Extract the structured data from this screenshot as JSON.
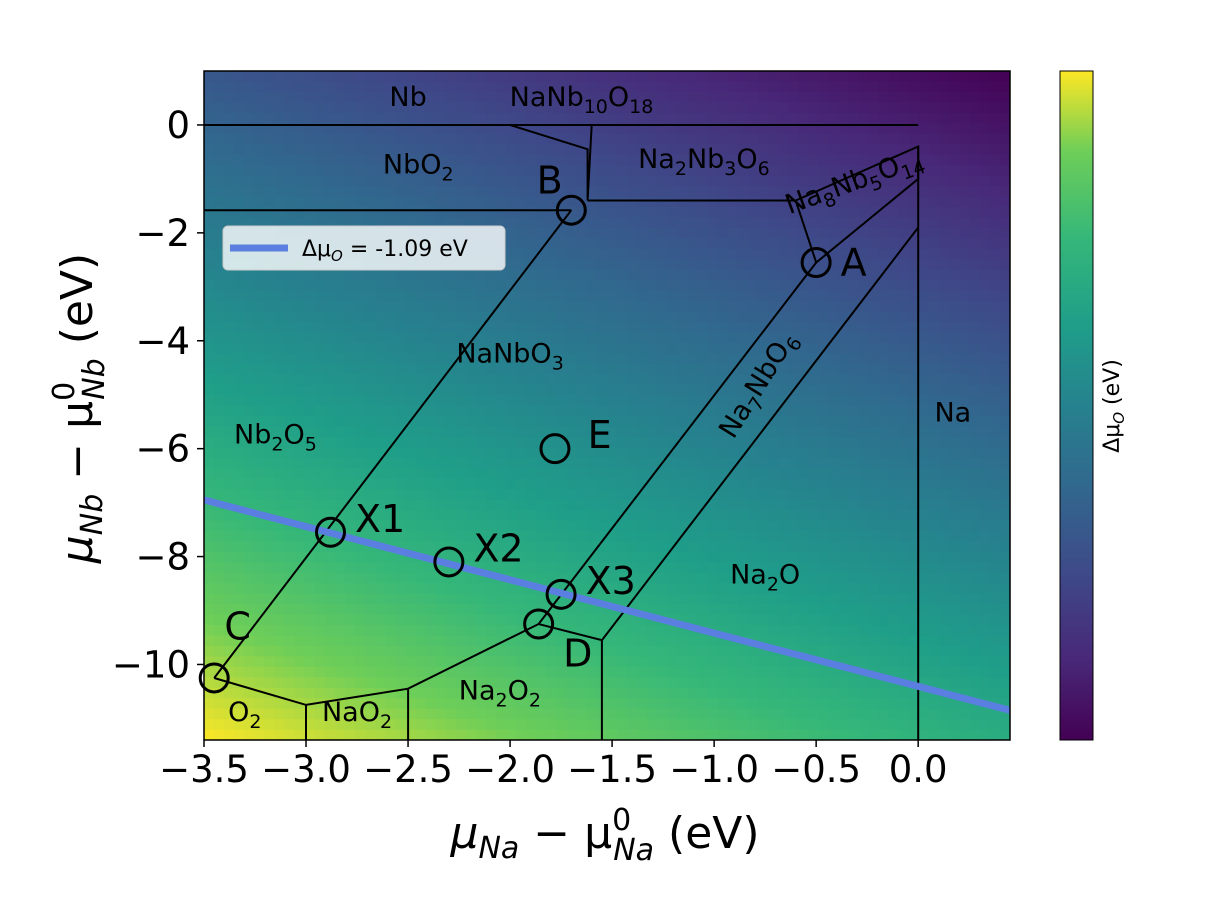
{
  "chart_data": {
    "type": "heatmap",
    "xlim": [
      -3.5,
      0.45
    ],
    "ylim": [
      -11.4,
      1.0
    ],
    "x_ticks": [
      -3.5,
      -3.0,
      -2.5,
      -2.0,
      -1.5,
      -1.0,
      -0.5,
      0.0
    ],
    "x_tick_labels": [
      "−3.5",
      "−3.0",
      "−2.5",
      "−2.0",
      "−1.5",
      "−1.0",
      "−0.5",
      "0.0"
    ],
    "y_ticks": [
      0,
      -2,
      -4,
      -6,
      -8,
      -10
    ],
    "y_tick_labels": [
      "0",
      "−2",
      "−4",
      "−6",
      "−8",
      "−10"
    ],
    "xlabel": {
      "main": "μ",
      "sub": "Na",
      "minus": " − μ",
      "sup": "0",
      "sub2": "Na",
      "unit": " (eV)"
    },
    "ylabel": {
      "main": "μ",
      "sub": "Nb",
      "minus": " − μ",
      "sup": "0",
      "sub2": "Nb",
      "unit": " (eV)"
    },
    "colorbar": {
      "label_main": "Δμ",
      "label_sub": "O",
      "label_unit": " (eV)",
      "colormap": "viridis",
      "reversed": true
    },
    "background": {
      "formula": "delta_mu_O = (-2*mu_Na - 2*mu_Nb)/5 roughly; reversed viridis"
    },
    "legend": {
      "placement": "upper-left",
      "line_color": "#5b7fe0",
      "text_main": "Δμ",
      "text_sub": "O",
      "text_rest": " = -1.09 eV"
    },
    "line_dmu_o": {
      "value": -1.09,
      "x": [
        -3.5,
        0.45
      ],
      "y": [
        -6.95,
        -10.85
      ],
      "color": "#5b7fe0"
    },
    "phase_boundaries": [
      [
        [
          -3.5,
          0.0
        ],
        [
          0.0,
          0.0
        ]
      ],
      [
        [
          -2.0,
          0.0
        ],
        [
          -1.62,
          -0.45
        ],
        [
          -1.62,
          -1.4
        ],
        [
          -1.6,
          0.0
        ]
      ],
      [
        [
          -3.5,
          -1.58
        ],
        [
          -1.7,
          -1.58
        ]
      ],
      [
        [
          -1.62,
          -1.4
        ],
        [
          -0.6,
          -1.4
        ],
        [
          -0.5,
          -2.55
        ],
        [
          0.0,
          -1.0
        ],
        [
          0.0,
          -0.4
        ],
        [
          -0.6,
          -1.4
        ]
      ],
      [
        [
          -1.7,
          -1.58
        ],
        [
          -3.45,
          -10.25
        ]
      ],
      [
        [
          -0.5,
          -2.55
        ],
        [
          -1.86,
          -9.25
        ]
      ],
      [
        [
          0.0,
          -1.9
        ],
        [
          -1.55,
          -9.55
        ]
      ],
      [
        [
          0.0,
          -0.4
        ],
        [
          0.0,
          -11.4
        ]
      ],
      [
        [
          -3.45,
          -10.25
        ],
        [
          -3.0,
          -10.75
        ],
        [
          -2.5,
          -10.45
        ],
        [
          -1.86,
          -9.25
        ],
        [
          -1.55,
          -9.55
        ],
        [
          -1.55,
          -11.4
        ]
      ],
      [
        [
          -3.0,
          -10.75
        ],
        [
          -3.0,
          -11.4
        ]
      ],
      [
        [
          -2.5,
          -10.45
        ],
        [
          -2.5,
          -11.4
        ]
      ]
    ],
    "regions": [
      {
        "name": "Nb",
        "parts": [
          [
            "Nb",
            ""
          ]
        ],
        "x": -2.5,
        "y": 0.35
      },
      {
        "name": "NaNb10O18",
        "parts": [
          [
            "NaNb",
            ""
          ],
          [
            "10",
            "sub"
          ],
          [
            "O",
            ""
          ],
          [
            "18",
            "sub"
          ]
        ],
        "x": -1.65,
        "y": 0.35
      },
      {
        "name": "NbO2",
        "parts": [
          [
            "NbO",
            ""
          ],
          [
            "2",
            "sub"
          ]
        ],
        "x": -2.45,
        "y": -0.9
      },
      {
        "name": "Na2Nb3O6",
        "parts": [
          [
            "Na",
            ""
          ],
          [
            "2",
            "sub"
          ],
          [
            "Nb",
            ""
          ],
          [
            "3",
            "sub"
          ],
          [
            "O",
            ""
          ],
          [
            "6",
            "sub"
          ]
        ],
        "x": -1.05,
        "y": -0.8
      },
      {
        "name": "Na8Nb5O14",
        "parts": [
          [
            "Na",
            ""
          ],
          [
            "8",
            "sub"
          ],
          [
            "Nb",
            ""
          ],
          [
            "5",
            "sub"
          ],
          [
            "O",
            ""
          ],
          [
            "14",
            "sub"
          ]
        ],
        "x": -0.3,
        "y": -1.2,
        "rotate": -20
      },
      {
        "name": "NaNbO3",
        "parts": [
          [
            "NaNbO",
            ""
          ],
          [
            "3",
            "sub"
          ]
        ],
        "x": -2.0,
        "y": -4.4
      },
      {
        "name": "Na7NbO6",
        "parts": [
          [
            "Na",
            ""
          ],
          [
            "7",
            "sub"
          ],
          [
            "NbO",
            ""
          ],
          [
            "6",
            "sub"
          ]
        ],
        "x": -0.75,
        "y": -4.9,
        "rotate": -58
      },
      {
        "name": "Na",
        "parts": [
          [
            "Na",
            ""
          ]
        ],
        "x": 0.17,
        "y": -5.5
      },
      {
        "name": "Nb2O5",
        "parts": [
          [
            "Nb",
            ""
          ],
          [
            "2",
            "sub"
          ],
          [
            "O",
            ""
          ],
          [
            "5",
            "sub"
          ]
        ],
        "x": -3.15,
        "y": -5.9
      },
      {
        "name": "Na2O",
        "parts": [
          [
            "Na",
            ""
          ],
          [
            "2",
            "sub"
          ],
          [
            "O",
            ""
          ]
        ],
        "x": -0.75,
        "y": -8.5
      },
      {
        "name": "Na2O2",
        "parts": [
          [
            "Na",
            ""
          ],
          [
            "2",
            "sub"
          ],
          [
            "O",
            ""
          ],
          [
            "2",
            "sub"
          ]
        ],
        "x": -2.05,
        "y": -10.65
      },
      {
        "name": "NaO2",
        "parts": [
          [
            "NaO",
            ""
          ],
          [
            "2",
            "sub"
          ]
        ],
        "x": -2.75,
        "y": -11.05
      },
      {
        "name": "O2",
        "parts": [
          [
            "O",
            ""
          ],
          [
            "2",
            "sub"
          ]
        ],
        "x": -3.3,
        "y": -11.05
      }
    ],
    "points": [
      {
        "label": "A",
        "x": -0.5,
        "y": -2.55,
        "lx": 0.12,
        "ly": 0.0
      },
      {
        "label": "B",
        "x": -1.7,
        "y": -1.58,
        "lx": -0.17,
        "ly": 0.55
      },
      {
        "label": "C",
        "x": -3.45,
        "y": -10.25,
        "lx": 0.05,
        "ly": 0.95
      },
      {
        "label": "D",
        "x": -1.86,
        "y": -9.25,
        "lx": 0.12,
        "ly": -0.55
      },
      {
        "label": "E",
        "x": -1.78,
        "y": -6.0,
        "lx": 0.16,
        "ly": 0.25
      },
      {
        "label": "X1",
        "x": -2.88,
        "y": -7.55,
        "lx": 0.12,
        "ly": 0.25
      },
      {
        "label": "X2",
        "x": -2.3,
        "y": -8.1,
        "lx": 0.12,
        "ly": 0.25
      },
      {
        "label": "X3",
        "x": -1.75,
        "y": -8.7,
        "lx": 0.12,
        "ly": 0.25
      }
    ]
  }
}
